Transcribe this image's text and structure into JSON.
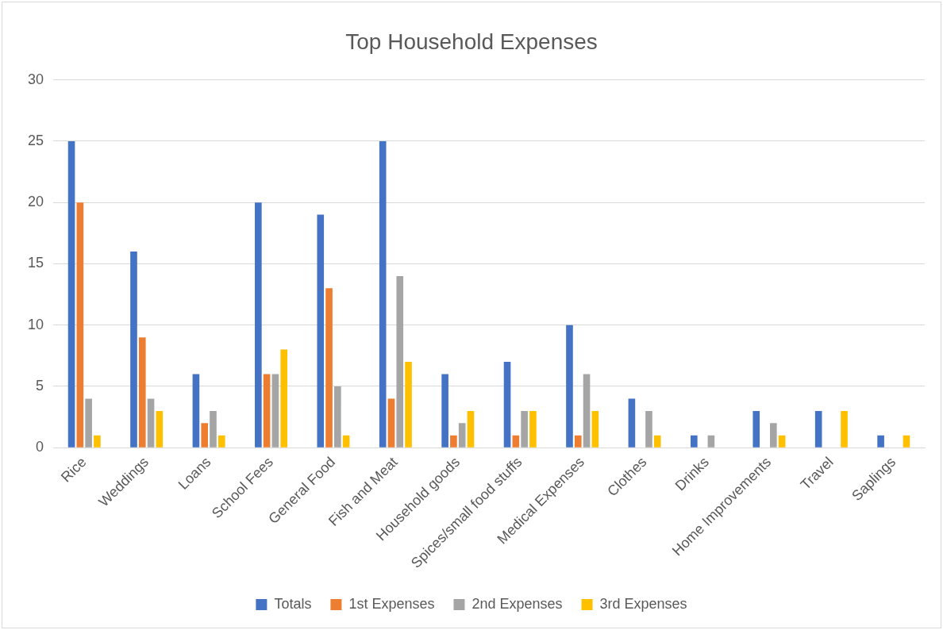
{
  "chart_data": {
    "type": "bar",
    "title": "Top Household Expenses",
    "categories": [
      "Rice",
      "Weddings",
      "Loans",
      "School Fees",
      "General Food",
      "Fish and Meat",
      "Household goods",
      "Spices/small food stuffs",
      "Medical Expenses",
      "Clothes",
      "Drinks",
      "Home Improvements",
      "Travel",
      "Saplings"
    ],
    "series": [
      {
        "name": "Totals",
        "color": "#4472c4",
        "values": [
          25,
          16,
          6,
          20,
          19,
          25,
          6,
          7,
          10,
          4,
          1,
          3,
          3,
          1
        ]
      },
      {
        "name": "1st Expenses",
        "color": "#ed7d31",
        "values": [
          20,
          9,
          2,
          6,
          13,
          4,
          1,
          1,
          1,
          0,
          0,
          0,
          0,
          0
        ]
      },
      {
        "name": "2nd Expenses",
        "color": "#a5a5a5",
        "values": [
          4,
          4,
          3,
          6,
          5,
          14,
          2,
          3,
          6,
          3,
          1,
          2,
          0,
          0
        ]
      },
      {
        "name": "3rd Expenses",
        "color": "#ffc000",
        "values": [
          1,
          3,
          1,
          8,
          1,
          7,
          3,
          3,
          3,
          1,
          0,
          1,
          3,
          1
        ]
      }
    ],
    "ylim": [
      0,
      30
    ],
    "yticks": [
      0,
      5,
      10,
      15,
      20,
      25,
      30
    ],
    "grid": "y",
    "legend": "bottom"
  }
}
